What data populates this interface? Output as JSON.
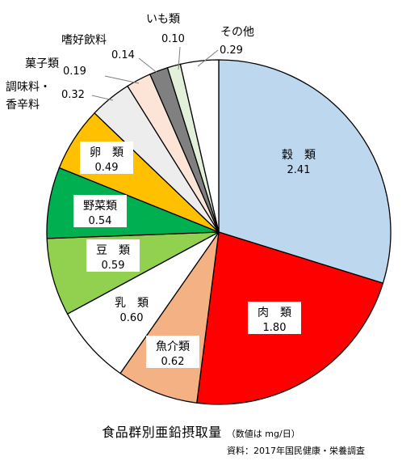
{
  "chart_data": {
    "type": "pie",
    "title": "食品群別亜鉛摂取量",
    "unit_note": "（数値は mg/日）",
    "source": "資料：2017年国民健康・栄養調査",
    "slices": [
      {
        "name": "穀　類",
        "value": 2.41,
        "color": "#bdd7ee"
      },
      {
        "name": "肉　類",
        "value": 1.8,
        "color": "#ff0000"
      },
      {
        "name": "魚介類",
        "value": 0.62,
        "color": "#f4b183"
      },
      {
        "name": "乳　類",
        "value": 0.6,
        "color": "#ffffff"
      },
      {
        "name": "豆　類",
        "value": 0.59,
        "color": "#92d050"
      },
      {
        "name": "野菜類",
        "value": 0.54,
        "color": "#00b050"
      },
      {
        "name": "卵　類",
        "value": 0.49,
        "color": "#ffc000"
      },
      {
        "name": "調味料・香辛料",
        "value": 0.32,
        "color": "#ededed"
      },
      {
        "name": "菓子類",
        "value": 0.19,
        "color": "#fce4d6"
      },
      {
        "name": "嗜好飲料",
        "value": 0.14,
        "color": "#808080"
      },
      {
        "name": "いも類",
        "value": 0.1,
        "color": "#e2f0d9"
      },
      {
        "name": "その他",
        "value": 0.29,
        "color": "#ffffff"
      }
    ]
  }
}
